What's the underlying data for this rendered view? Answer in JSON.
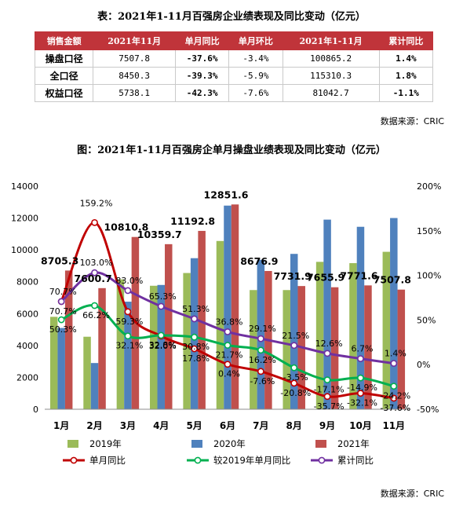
{
  "table": {
    "title": "表：2021年1-11月百强房企业绩表现及同比变动（亿元）",
    "headers": [
      "销售金额",
      "2021年11月",
      "单月同比",
      "单月环比",
      "2021年1-11月",
      "累计同比"
    ],
    "rows": [
      {
        "label": "操盘口径",
        "cells": [
          "7507.8",
          "-37.6%",
          "-3.4%",
          "100865.2",
          "1.4%"
        ]
      },
      {
        "label": "全口径",
        "cells": [
          "8450.3",
          "-39.3%",
          "-5.9%",
          "115310.3",
          "1.8%"
        ]
      },
      {
        "label": "权益口径",
        "cells": [
          "5738.1",
          "-42.3%",
          "-7.6%",
          "81042.7",
          "-1.1%"
        ]
      }
    ],
    "source": "数据来源：CRIC"
  },
  "chart_data": {
    "type": "bar",
    "title": "图：2021年1-11月百强房企单月操盘业绩表现及同比变动（亿元）",
    "categories": [
      "1月",
      "2月",
      "3月",
      "4月",
      "5月",
      "6月",
      "7月",
      "8月",
      "9月",
      "10月",
      "11月"
    ],
    "ylim_left": [
      0,
      14000
    ],
    "yticks_left": [
      0,
      2000,
      4000,
      6000,
      8000,
      10000,
      12000,
      14000
    ],
    "ylim_right": [
      -50,
      200
    ],
    "yticks_right": [
      "-50%",
      "0%",
      "50%",
      "100%",
      "150%",
      "200%"
    ],
    "bar_series": [
      {
        "name": "2019年",
        "color": "#9bbb59",
        "values": [
          5800,
          4550,
          8150,
          7750,
          8550,
          10560,
          7480,
          7480,
          9250,
          9170,
          9880
        ]
      },
      {
        "name": "2020年",
        "color": "#4f81bd",
        "values": [
          5100,
          2900,
          6750,
          7800,
          9480,
          12780,
          9380,
          9750,
          11900,
          11450,
          12000
        ]
      },
      {
        "name": "2021年",
        "color": "#c0504d",
        "values": [
          8705.3,
          7600.7,
          10810.8,
          10359.7,
          11192.8,
          12851.6,
          8676.9,
          7731.9,
          7655.9,
          7771.6,
          7507.8
        ]
      }
    ],
    "bar_labels_2021": [
      "8705.3",
      "7600.7",
      "10810.8",
      "10359.7",
      "11192.8",
      "12851.6",
      "8676.9",
      "7731.9",
      "7655.9",
      "7771.6",
      "7507.8"
    ],
    "line_series": [
      {
        "name": "单月同比",
        "color": "#c00000",
        "values": [
          70.7,
          159.2,
          59.3,
          32.0,
          17.8,
          0.4,
          -7.6,
          -20.8,
          -35.7,
          -32.1,
          -37.6
        ],
        "labels": [
          "70.7%",
          "159.2%",
          "59.3%",
          "32.0%",
          "17.8%",
          "0.4%",
          "-7.6%",
          "-20.8%",
          "-35.7%",
          "-32.1%",
          "-37.6%"
        ]
      },
      {
        "name": "较2019年单月同比",
        "color": "#00b050",
        "values": [
          50.3,
          66.2,
          32.1,
          32.8,
          30.8,
          21.7,
          16.2,
          -3.5,
          -17.1,
          -14.9,
          -24.2
        ],
        "labels": [
          "50.3%",
          "66.2%",
          "32.1%",
          "32.8%",
          "30.8%",
          "21.7%",
          "16.2%",
          "-3.5%",
          "-17.1%",
          "-14.9%",
          "-24.2%"
        ]
      },
      {
        "name": "累计同比",
        "color": "#7030a0",
        "values": [
          70.7,
          103.0,
          83.0,
          65.3,
          51.3,
          36.8,
          29.1,
          21.5,
          12.6,
          6.7,
          1.4
        ],
        "labels": [
          "70.7%",
          "103.0%",
          "83.0%",
          "65.3%",
          "51.3%",
          "36.8%",
          "29.1%",
          "21.5%",
          "12.6%",
          "6.7%",
          "1.4%"
        ]
      }
    ],
    "legend": [
      "2019年",
      "2020年",
      "2021年",
      "单月同比",
      "较2019年单月同比",
      "累计同比"
    ],
    "legend_position": "bottom",
    "grid": false,
    "source": "数据来源：CRIC"
  }
}
